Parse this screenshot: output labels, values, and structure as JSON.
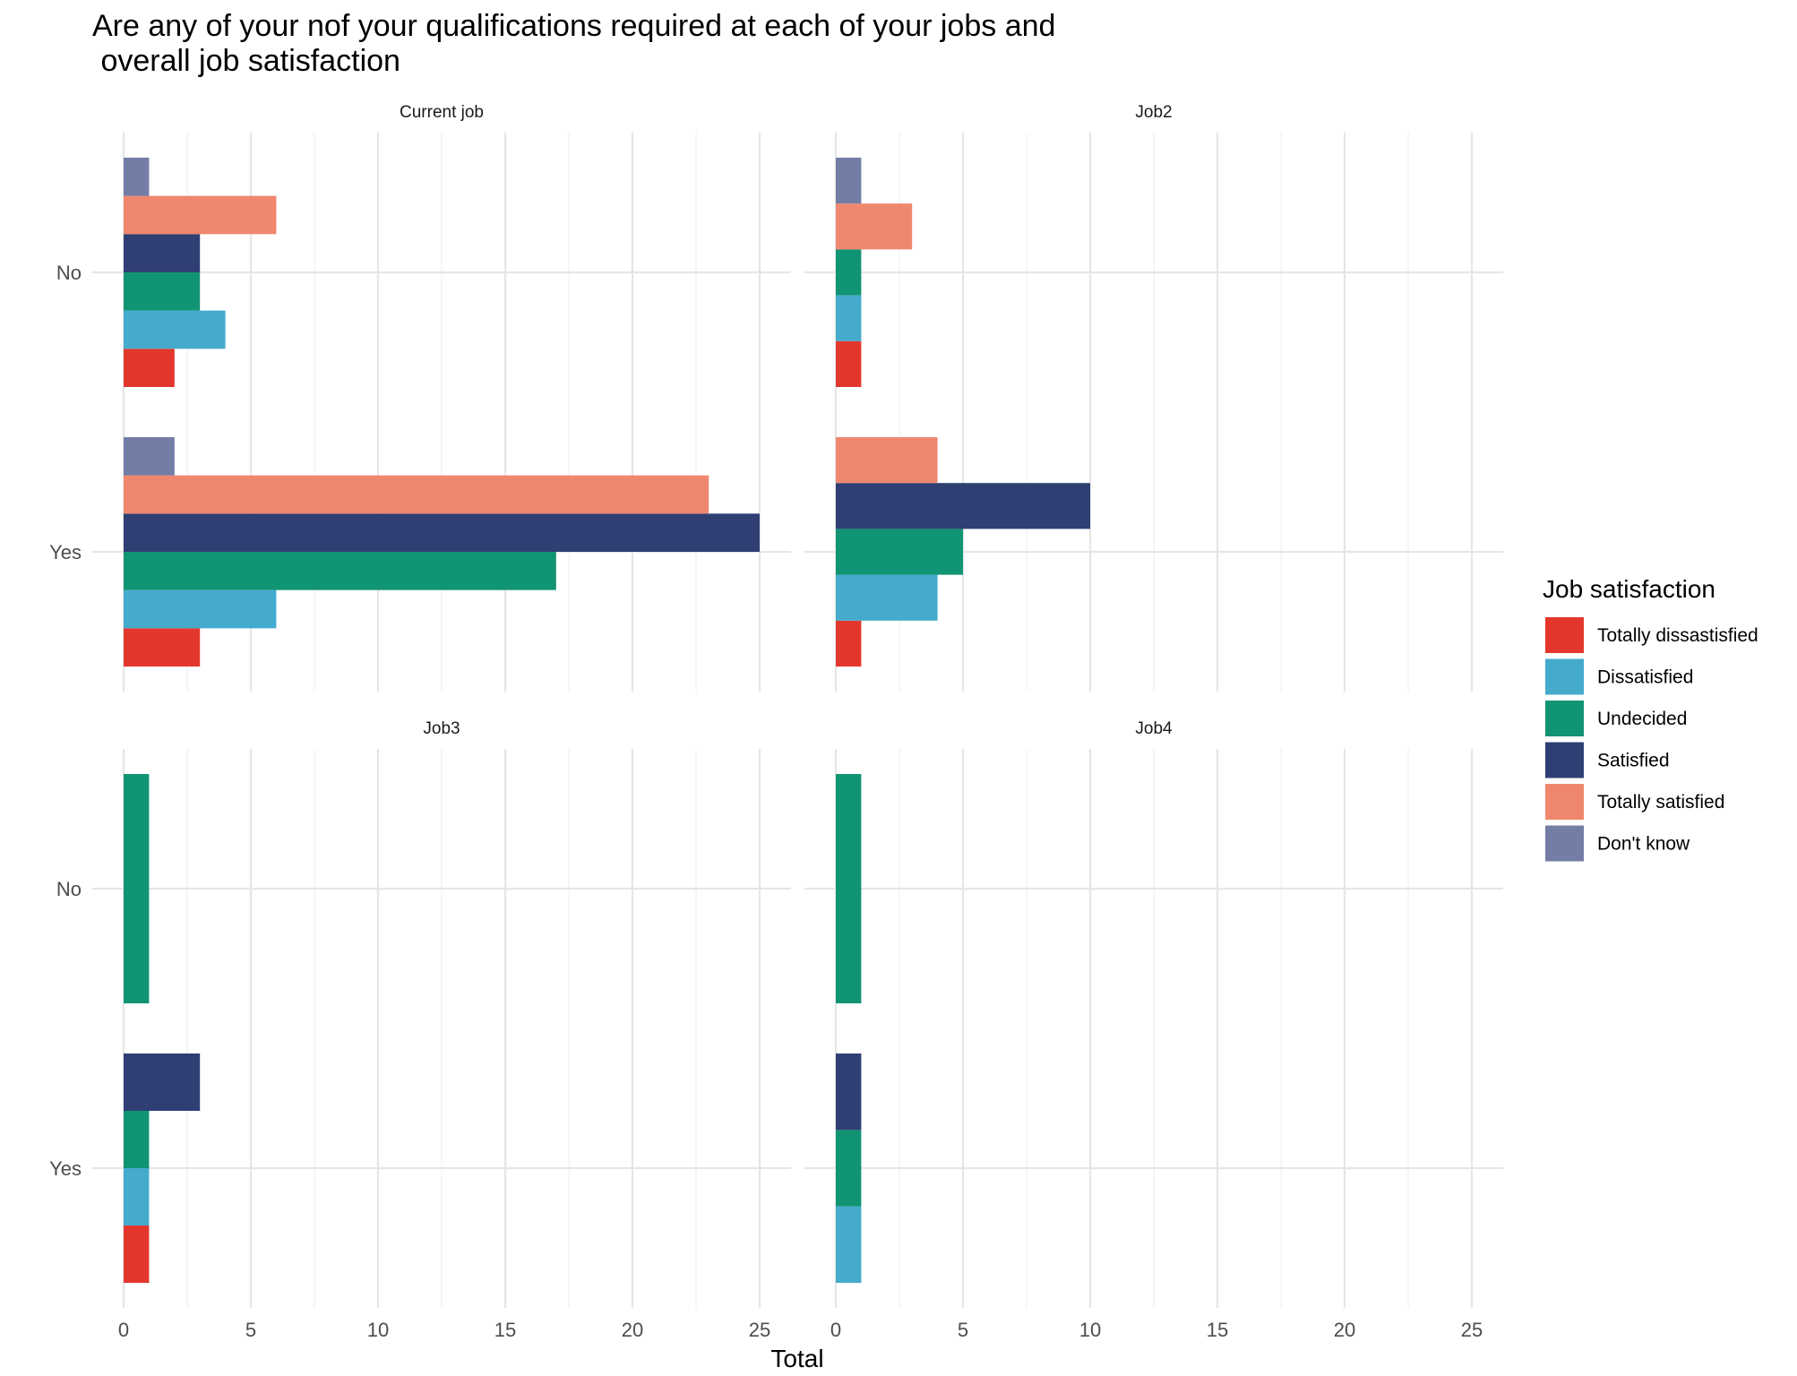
{
  "chart_data": {
    "type": "bar",
    "orientation": "horizontal",
    "title_lines": [
      "Are any of your nof your qualifications required at each of your jobs and",
      " overall job satisfaction"
    ],
    "xlabel": "Total",
    "ylabel": "",
    "xlim": [
      0,
      25
    ],
    "x_ticks": [
      "0",
      "5",
      "10",
      "15",
      "20",
      "25"
    ],
    "categories": [
      "No",
      "Yes"
    ],
    "grid": true,
    "legend": {
      "title": "Job satisfaction",
      "position": "right",
      "entries": [
        {
          "name": "Totally dissastisfied",
          "color": "#E3372D"
        },
        {
          "name": "Dissatisfied",
          "color": "#44ABCC"
        },
        {
          "name": "Undecided",
          "color": "#119473"
        },
        {
          "name": "Satisfied",
          "color": "#2F3F74"
        },
        {
          "name": "Totally satisfied",
          "color": "#EF876E"
        },
        {
          "name": "Don't know",
          "color": "#737DA6"
        }
      ]
    },
    "panels": [
      {
        "title": "Current job",
        "groups": {
          "No": [
            {
              "level": "Totally dissastisfied",
              "value": 2
            },
            {
              "level": "Dissatisfied",
              "value": 4
            },
            {
              "level": "Undecided",
              "value": 3
            },
            {
              "level": "Satisfied",
              "value": 3
            },
            {
              "level": "Totally satisfied",
              "value": 6
            },
            {
              "level": "Don't know",
              "value": 1
            }
          ],
          "Yes": [
            {
              "level": "Totally dissastisfied",
              "value": 3
            },
            {
              "level": "Dissatisfied",
              "value": 6
            },
            {
              "level": "Undecided",
              "value": 17
            },
            {
              "level": "Satisfied",
              "value": 25
            },
            {
              "level": "Totally satisfied",
              "value": 23
            },
            {
              "level": "Don't know",
              "value": 2
            }
          ]
        }
      },
      {
        "title": "Job2",
        "groups": {
          "No": [
            {
              "level": "Totally dissastisfied",
              "value": 1
            },
            {
              "level": "Dissatisfied",
              "value": 1
            },
            {
              "level": "Undecided",
              "value": 1
            },
            {
              "level": "Totally satisfied",
              "value": 3
            },
            {
              "level": "Don't know",
              "value": 1
            }
          ],
          "Yes": [
            {
              "level": "Totally dissastisfied",
              "value": 1
            },
            {
              "level": "Dissatisfied",
              "value": 4
            },
            {
              "level": "Undecided",
              "value": 5
            },
            {
              "level": "Satisfied",
              "value": 10
            },
            {
              "level": "Totally satisfied",
              "value": 4
            }
          ]
        }
      },
      {
        "title": "Job3",
        "groups": {
          "No": [
            {
              "level": "Undecided",
              "value": 1
            }
          ],
          "Yes": [
            {
              "level": "Totally dissastisfied",
              "value": 1
            },
            {
              "level": "Dissatisfied",
              "value": 1
            },
            {
              "level": "Undecided",
              "value": 1
            },
            {
              "level": "Satisfied",
              "value": 3
            }
          ]
        }
      },
      {
        "title": "Job4",
        "groups": {
          "No": [
            {
              "level": "Undecided",
              "value": 1
            }
          ],
          "Yes": [
            {
              "level": "Dissatisfied",
              "value": 1
            },
            {
              "level": "Undecided",
              "value": 1
            },
            {
              "level": "Satisfied",
              "value": 1
            }
          ]
        }
      }
    ]
  }
}
